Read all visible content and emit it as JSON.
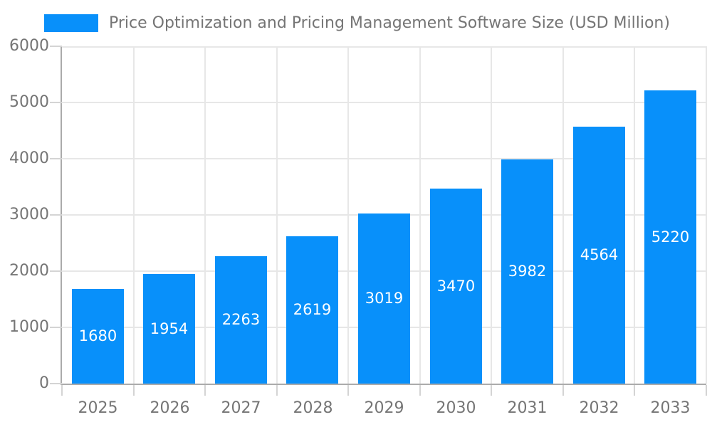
{
  "chart_data": {
    "type": "bar",
    "title": "Price Optimization and Pricing Management Software Size (USD Million)",
    "categories": [
      "2025",
      "2026",
      "2027",
      "2028",
      "2029",
      "2030",
      "2031",
      "2032",
      "2033"
    ],
    "values": [
      1680,
      1954,
      2263,
      2619,
      3019,
      3470,
      3982,
      4564,
      5220
    ],
    "xlabel": "",
    "ylabel": "",
    "ylim": [
      0,
      6000
    ],
    "ytick_step": 1000,
    "ytick_labels": [
      "0",
      "1000",
      "2000",
      "3000",
      "4000",
      "5000",
      "6000"
    ],
    "grid": "on",
    "legend_position": "top-left",
    "bar_labels_shown": true,
    "colors": {
      "bar": "#0890fa",
      "grid": "#e7e7e7",
      "axis": "#ababab",
      "tick": "#d4d4d4",
      "text": "#757575",
      "bar_label_text": "#ffffff",
      "background": "#ffffff"
    }
  }
}
